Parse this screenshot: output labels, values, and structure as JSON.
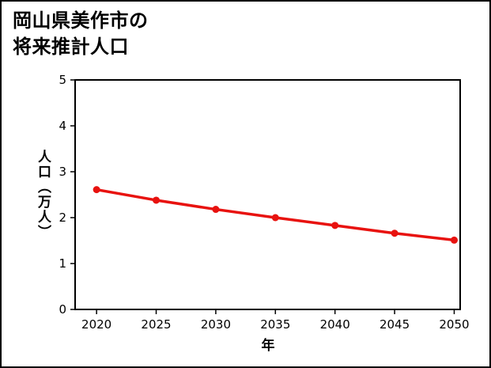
{
  "page": {
    "background": "#ffffff",
    "border_color": "#000000"
  },
  "title": {
    "line1": "岡山県美作市の",
    "line2": "将来推計人口"
  },
  "chart_data": {
    "type": "line",
    "title": "岡山県美作市の将来推計人口",
    "x": [
      2020,
      2025,
      2030,
      2035,
      2040,
      2045,
      2050
    ],
    "series": [
      {
        "name": "将来推計人口",
        "color": "#e8120f",
        "marker": "circle",
        "values": [
          2.61,
          2.38,
          2.18,
          2.0,
          1.83,
          1.66,
          1.51
        ]
      }
    ],
    "xlabel": "年",
    "ylabel": "人口（万人）",
    "xlim": [
      2018.2,
      2050.5
    ],
    "ylim": [
      0,
      5
    ],
    "xticks": [
      2020,
      2025,
      2030,
      2035,
      2040,
      2045,
      2050
    ],
    "yticks": [
      0,
      1,
      2,
      3,
      4,
      5
    ],
    "grid": false,
    "frame": true,
    "legend": "none",
    "axis_color": "#000000",
    "tick_label_color": "#000000"
  }
}
